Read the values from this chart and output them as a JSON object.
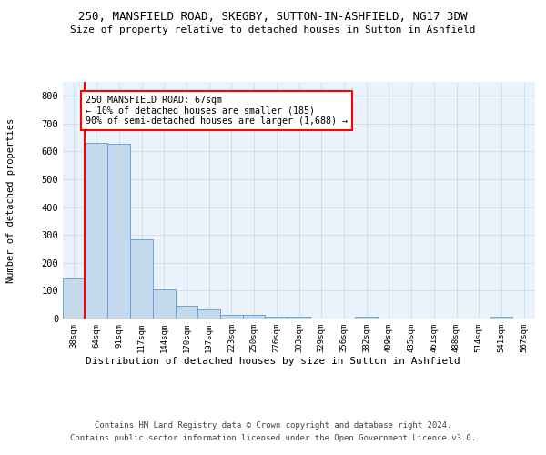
{
  "title1": "250, MANSFIELD ROAD, SKEGBY, SUTTON-IN-ASHFIELD, NG17 3DW",
  "title2": "Size of property relative to detached houses in Sutton in Ashfield",
  "xlabel": "Distribution of detached houses by size in Sutton in Ashfield",
  "ylabel": "Number of detached properties",
  "footer1": "Contains HM Land Registry data © Crown copyright and database right 2024.",
  "footer2": "Contains public sector information licensed under the Open Government Licence v3.0.",
  "annotation_line1": "250 MANSFIELD ROAD: 67sqm",
  "annotation_line2": "← 10% of detached houses are smaller (185)",
  "annotation_line3": "90% of semi-detached houses are larger (1,688) →",
  "bar_color": "#c5d9ed",
  "bar_edge_color": "#5b9bd5",
  "red_line_color": "#ff0000",
  "background_color": "#ffffff",
  "grid_color": "#c8d8e8",
  "categories": [
    "38sqm",
    "64sqm",
    "91sqm",
    "117sqm",
    "144sqm",
    "170sqm",
    "197sqm",
    "223sqm",
    "250sqm",
    "276sqm",
    "303sqm",
    "329sqm",
    "356sqm",
    "382sqm",
    "409sqm",
    "435sqm",
    "461sqm",
    "488sqm",
    "514sqm",
    "541sqm",
    "567sqm"
  ],
  "values": [
    145,
    630,
    627,
    285,
    104,
    47,
    32,
    12,
    12,
    5,
    8,
    0,
    0,
    7,
    0,
    0,
    0,
    0,
    0,
    7,
    0
  ],
  "ylim": [
    0,
    850
  ],
  "yticks": [
    0,
    100,
    200,
    300,
    400,
    500,
    600,
    700,
    800
  ],
  "red_line_x": 0.49
}
